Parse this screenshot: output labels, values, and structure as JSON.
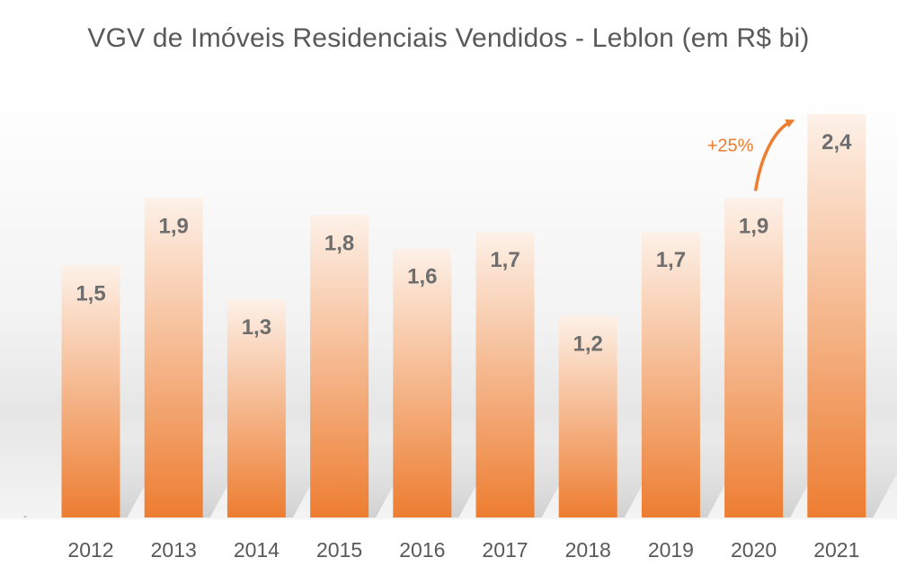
{
  "chart_data": {
    "type": "bar",
    "title": "VGV de Imóveis Residenciais Vendidos - Leblon (em R$ bi)",
    "xlabel": "",
    "ylabel": "",
    "categories": [
      "2012",
      "2013",
      "2014",
      "2015",
      "2016",
      "2017",
      "2018",
      "2019",
      "2020",
      "2021"
    ],
    "values": [
      1.5,
      1.9,
      1.3,
      1.8,
      1.6,
      1.7,
      1.2,
      1.7,
      1.9,
      2.4
    ],
    "value_labels": [
      "1,5",
      "1,9",
      "1,3",
      "1,8",
      "1,6",
      "1,7",
      "1,2",
      "1,7",
      "1,9",
      "2,4"
    ],
    "ylim": [
      0,
      2.4
    ],
    "grid": false,
    "legend": "none",
    "annotation": {
      "text": "+25%",
      "from": "2020",
      "to": "2021"
    },
    "colors": {
      "bar_top": "#fce9dc",
      "bar_bottom": "#ed7d31",
      "annotation": "#ed7d31",
      "label": "#6e6e6e",
      "title": "#595959"
    }
  }
}
